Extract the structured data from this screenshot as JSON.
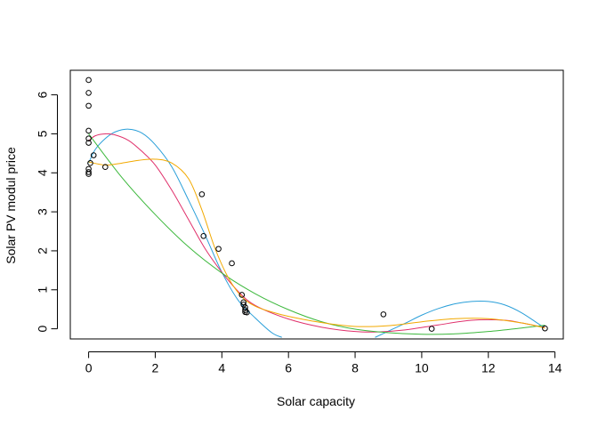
{
  "chart_data": {
    "type": "scatter",
    "title": "",
    "xlabel": "Solar capacity",
    "ylabel": "Solar PV modul price",
    "xlim": [
      -0.55,
      14.25
    ],
    "ylim": [
      -0.26,
      6.63
    ],
    "x_ticks": [
      0,
      2,
      4,
      6,
      8,
      10,
      12,
      14
    ],
    "y_ticks": [
      0,
      1,
      2,
      3,
      4,
      5,
      6
    ],
    "x_tick_labels": [
      "0",
      "2",
      "4",
      "6",
      "8",
      "10",
      "12",
      "14"
    ],
    "y_tick_labels": [
      "0",
      "1",
      "2",
      "3",
      "4",
      "5",
      "6"
    ],
    "grid": false,
    "legend": "none",
    "points": {
      "x": [
        0.0,
        0.0,
        0.0,
        0.0,
        0.0,
        0.0,
        0.0,
        0.0,
        0.0,
        0.05,
        0.15,
        0.5,
        3.4,
        3.45,
        3.9,
        4.3,
        4.6,
        4.65,
        4.65,
        4.7,
        4.7,
        4.7,
        4.75,
        8.85,
        10.3,
        13.7
      ],
      "y": [
        6.38,
        6.05,
        5.72,
        5.08,
        4.88,
        4.77,
        4.1,
        4.02,
        3.97,
        4.25,
        4.45,
        4.15,
        3.45,
        2.38,
        2.05,
        1.68,
        0.87,
        0.68,
        0.62,
        0.55,
        0.48,
        0.43,
        0.42,
        0.37,
        0.0,
        0.01
      ]
    },
    "series": [
      {
        "color": "#2a9fd9",
        "x": [
          0.0,
          0.2,
          0.5,
          0.8,
          1.2,
          1.6,
          2.0,
          2.5,
          3.0,
          3.5,
          4.0,
          4.5,
          5.0,
          5.5,
          5.8
        ],
        "y": [
          4.25,
          4.6,
          4.88,
          5.05,
          5.12,
          5.02,
          4.72,
          4.15,
          3.3,
          2.4,
          1.45,
          0.72,
          0.28,
          -0.1,
          -0.22
        ]
      },
      {
        "color": "#2a9fd9",
        "x": [
          8.6,
          9.0,
          9.5,
          10.0,
          10.5,
          11.0,
          11.5,
          12.0,
          12.5,
          13.0,
          13.5,
          13.7
        ],
        "y": [
          -0.22,
          -0.06,
          0.14,
          0.35,
          0.52,
          0.64,
          0.7,
          0.7,
          0.61,
          0.41,
          0.13,
          0.02
        ]
      },
      {
        "color": "#e0306b",
        "x": [
          0.0,
          0.2,
          0.5,
          0.8,
          1.2,
          1.6,
          2.0,
          2.5,
          3.0,
          3.5,
          4.0,
          4.5,
          5.0,
          6.0,
          7.0,
          8.0,
          8.7,
          9.5,
          10.5,
          11.5,
          12.5,
          13.0,
          13.7
        ],
        "y": [
          4.82,
          4.95,
          5.0,
          4.97,
          4.83,
          4.55,
          4.2,
          3.55,
          2.8,
          2.05,
          1.45,
          0.95,
          0.6,
          0.25,
          0.04,
          -0.07,
          -0.08,
          -0.03,
          0.1,
          0.22,
          0.22,
          0.15,
          0.03
        ]
      },
      {
        "color": "#3cb83c",
        "x": [
          0.0,
          1.0,
          2.0,
          3.0,
          4.0,
          5.0,
          6.0,
          7.0,
          8.0,
          9.0,
          10.0,
          11.0,
          12.0,
          13.0,
          13.7
        ],
        "y": [
          5.0,
          3.88,
          2.93,
          2.1,
          1.43,
          0.9,
          0.49,
          0.18,
          -0.01,
          -0.1,
          -0.14,
          -0.13,
          -0.07,
          0.02,
          0.09
        ]
      },
      {
        "color": "#f2a900",
        "x": [
          0.0,
          0.5,
          1.0,
          1.5,
          2.0,
          2.5,
          3.0,
          3.4,
          3.8,
          4.2,
          4.6,
          5.0,
          5.5,
          6.0,
          7.0,
          8.0,
          9.0,
          10.0,
          11.0,
          12.0,
          13.0,
          13.7
        ],
        "y": [
          4.28,
          4.2,
          4.25,
          4.32,
          4.35,
          4.25,
          3.85,
          3.05,
          2.05,
          1.3,
          0.82,
          0.58,
          0.43,
          0.32,
          0.16,
          0.06,
          0.08,
          0.18,
          0.26,
          0.26,
          0.15,
          0.02
        ]
      }
    ]
  }
}
